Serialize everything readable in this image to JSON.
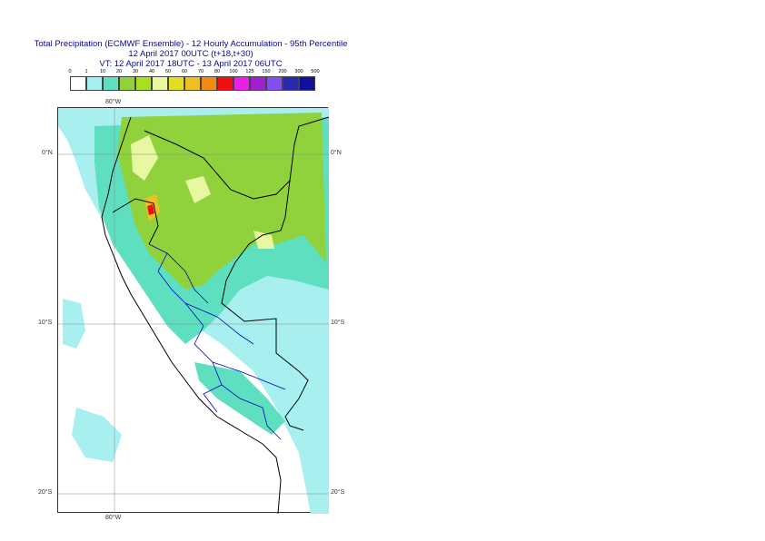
{
  "title": {
    "line1": "Total Precipitation (ECMWF Ensemble) - 12 Hourly Accumulation - 95th Percentile",
    "line2": "12 April 2017 00UTC (t+18,t+30)",
    "line3": "VT: 12 April 2017 18UTC - 13 April 2017 06UTC"
  },
  "legend": {
    "labels": [
      "0",
      "1",
      "10",
      "20",
      "30",
      "40",
      "50",
      "60",
      "70",
      "80",
      "100",
      "125",
      "150",
      "200",
      "300",
      "500"
    ],
    "colors": [
      "#ffffff",
      "#a8f0f0",
      "#5ee0c0",
      "#8fd23c",
      "#a8e020",
      "#e8f8a0",
      "#e0e020",
      "#f0c020",
      "#f08a10",
      "#f01010",
      "#e820e8",
      "#a020d0",
      "#8050f0",
      "#2828b0",
      "#1010a0"
    ]
  },
  "map": {
    "longitude_label": "80°W",
    "latitude_labels": {
      "equator": "0°N",
      "south10": "10°S",
      "south20": "20°S"
    },
    "colors": {
      "ocean": "#ffffff",
      "light_precip": "#a8f0f0",
      "mid_precip": "#5ee0c0",
      "green_precip": "#8fd23c",
      "yellow_precip": "#e8f8a0",
      "orange_precip": "#f0c020",
      "red_precip": "#f01010",
      "country_border": "#000000",
      "region_border": "#0000cc"
    }
  }
}
